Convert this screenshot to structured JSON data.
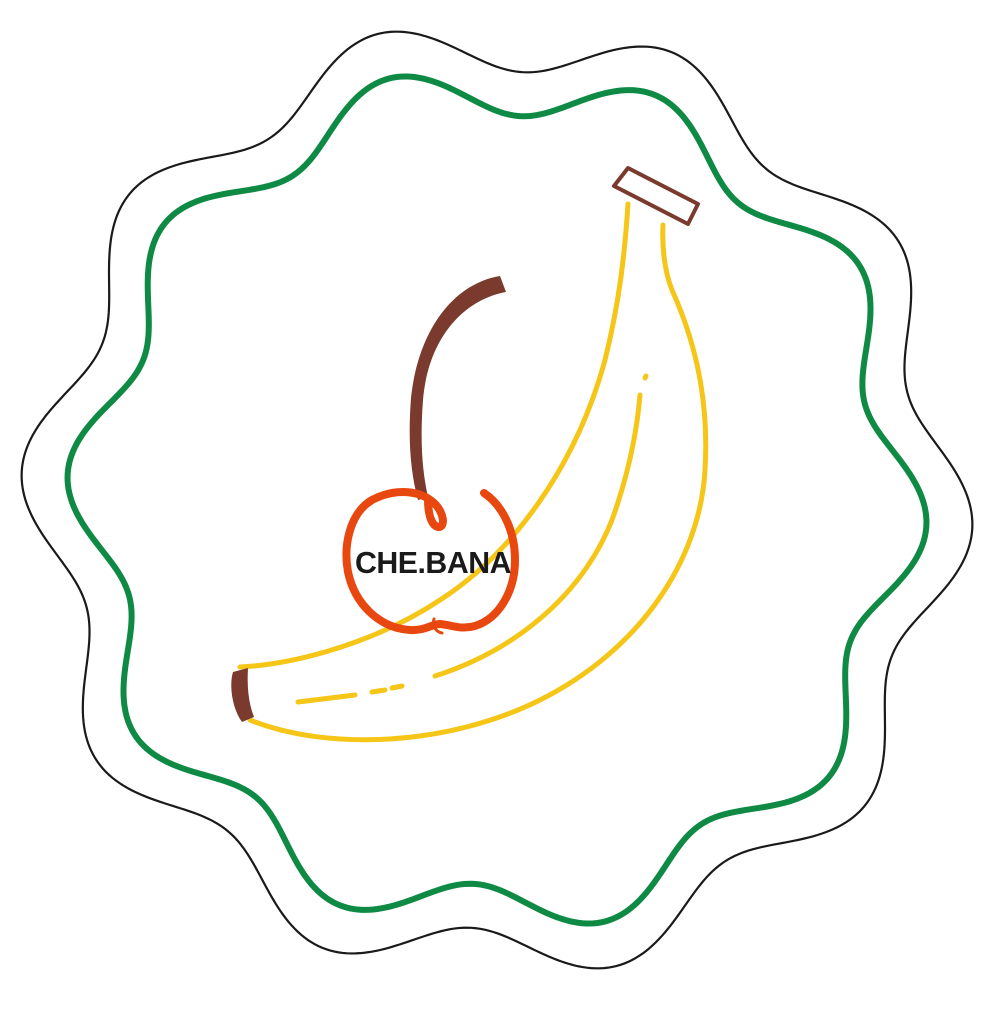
{
  "logo": {
    "brand_name": "CHE.BANA",
    "icons": {
      "badge": "wavy-badge-icon",
      "banana": "banana-icon",
      "cherry": "cherry-icon"
    },
    "colors": {
      "background": "#ffffff",
      "outer_outline": "#1a1a1a",
      "inner_outline": "#0f8a44",
      "banana": "#f5c518",
      "stem": "#7a3a2e",
      "cherry": "#e8470f",
      "text": "#1a1a1a"
    }
  }
}
